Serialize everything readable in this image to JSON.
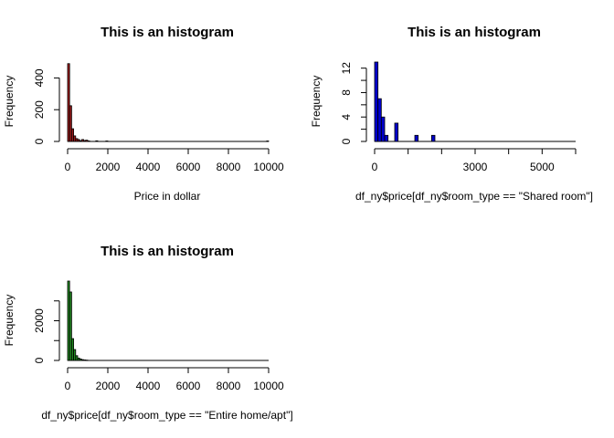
{
  "chart_data": [
    {
      "type": "histogram",
      "title": "This is an histogram",
      "xlabel": "Price in dollar",
      "ylabel": "Frequency",
      "bar_color": "#9E1A1A",
      "xlim": [
        0,
        10000
      ],
      "ylim": [
        0,
        500
      ],
      "x_ticks": [
        "0",
        "2000",
        "4000",
        "6000",
        "8000",
        "10000"
      ],
      "y_ticks": [
        "0",
        "200",
        "400"
      ],
      "bin_width": 100,
      "bins": [
        {
          "x0": 0,
          "x1": 100,
          "count": 490
        },
        {
          "x0": 100,
          "x1": 200,
          "count": 225
        },
        {
          "x0": 200,
          "x1": 300,
          "count": 80
        },
        {
          "x0": 300,
          "x1": 400,
          "count": 35
        },
        {
          "x0": 400,
          "x1": 500,
          "count": 18
        },
        {
          "x0": 500,
          "x1": 600,
          "count": 12
        },
        {
          "x0": 600,
          "x1": 700,
          "count": 5
        },
        {
          "x0": 700,
          "x1": 800,
          "count": 12
        },
        {
          "x0": 800,
          "x1": 900,
          "count": 6
        },
        {
          "x0": 900,
          "x1": 1000,
          "count": 8
        },
        {
          "x0": 1000,
          "x1": 1100,
          "count": 3
        },
        {
          "x0": 1400,
          "x1": 1500,
          "count": 4
        },
        {
          "x0": 1900,
          "x1": 2000,
          "count": 3
        },
        {
          "x0": 9900,
          "x1": 10000,
          "count": 3
        }
      ]
    },
    {
      "type": "histogram",
      "title": "This is an histogram",
      "xlabel": "df_ny$price[df_ny$room_type == \"Shared room\"]",
      "ylabel": "Frequency",
      "bar_color": "#0000CD",
      "xlim": [
        0,
        6000
      ],
      "ylim": [
        0,
        13
      ],
      "x_ticks": [
        "0",
        "1000",
        "2000",
        "3000",
        "4000",
        "5000",
        "6000"
      ],
      "x_tick_values": [
        0,
        1000,
        2000,
        3000,
        4000,
        5000,
        6000
      ],
      "x_tick_labels_shown": [
        "0",
        "",
        "",
        "3000",
        "",
        "5000",
        ""
      ],
      "y_ticks": [
        "0",
        "4",
        "8",
        "12"
      ],
      "y_tick_values": [
        0,
        2,
        4,
        6,
        8,
        10,
        12
      ],
      "y_tick_labels_shown": [
        "0",
        "",
        "4",
        "",
        "8",
        "",
        "12"
      ],
      "bin_width": 100,
      "bins": [
        {
          "x0": 0,
          "x1": 100,
          "count": 13
        },
        {
          "x0": 100,
          "x1": 200,
          "count": 7
        },
        {
          "x0": 200,
          "x1": 300,
          "count": 4
        },
        {
          "x0": 300,
          "x1": 400,
          "count": 1
        },
        {
          "x0": 600,
          "x1": 700,
          "count": 3
        },
        {
          "x0": 1200,
          "x1": 1300,
          "count": 1
        },
        {
          "x0": 1700,
          "x1": 1800,
          "count": 1
        }
      ]
    },
    {
      "type": "histogram",
      "title": "This is an histogram",
      "xlabel": "df_ny$price[df_ny$room_type == \"Entire home/apt\"]",
      "ylabel": "Frequency",
      "bar_color": "#228B22",
      "xlim": [
        0,
        10000
      ],
      "ylim": [
        0,
        4000
      ],
      "x_ticks": [
        "0",
        "2000",
        "4000",
        "6000",
        "8000",
        "10000"
      ],
      "y_ticks": [
        "0",
        "2000"
      ],
      "y_tick_values": [
        0,
        1000,
        2000,
        3000
      ],
      "y_tick_labels_shown": [
        "0",
        "",
        "2000",
        ""
      ],
      "bin_width": 100,
      "bins": [
        {
          "x0": 0,
          "x1": 100,
          "count": 4000
        },
        {
          "x0": 100,
          "x1": 200,
          "count": 3450
        },
        {
          "x0": 200,
          "x1": 300,
          "count": 1100
        },
        {
          "x0": 300,
          "x1": 400,
          "count": 550
        },
        {
          "x0": 400,
          "x1": 500,
          "count": 240
        },
        {
          "x0": 500,
          "x1": 600,
          "count": 120
        },
        {
          "x0": 600,
          "x1": 700,
          "count": 70
        },
        {
          "x0": 700,
          "x1": 800,
          "count": 40
        },
        {
          "x0": 800,
          "x1": 900,
          "count": 25
        },
        {
          "x0": 900,
          "x1": 1000,
          "count": 15
        }
      ]
    }
  ]
}
